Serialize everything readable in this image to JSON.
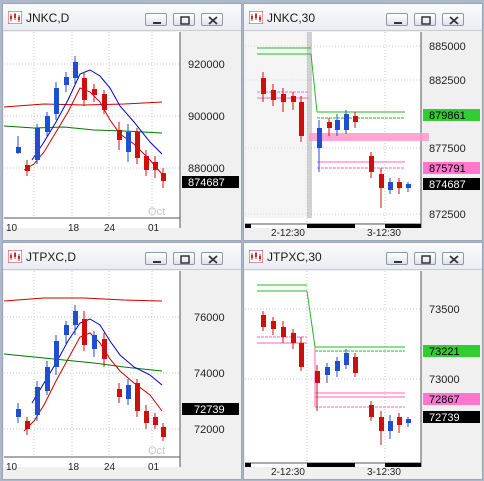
{
  "windows": [
    {
      "id": "w1",
      "title": "JNKC,D",
      "type": "candles",
      "x_labels": [
        "10",
        "18",
        "24",
        "01"
      ],
      "watermark": "Oct",
      "y_labels": [
        "920000",
        "900000",
        "880000"
      ],
      "price_tag": "874687",
      "colors": {
        "up": "#1f4fd0",
        "down": "#cc1010",
        "ma_fast": "#0000cc",
        "ma_red": "#cc0000",
        "ma_slow": "#007700",
        "ma_long": "#cc1010"
      }
    },
    {
      "id": "w2",
      "title": "JNKC,30",
      "type": "intraday",
      "x_labels": [
        "2-12:30",
        "3-12:30"
      ],
      "y_labels": [
        "885000",
        "882500",
        "877500",
        "872500"
      ],
      "green_tag": "879861",
      "pink_tag": "875791",
      "price_tag": "874687"
    },
    {
      "id": "w3",
      "title": "JTPXC,D",
      "type": "candles",
      "x_labels": [
        "10",
        "18",
        "24",
        "01"
      ],
      "watermark": "Oct",
      "y_labels": [
        "76000",
        "74000",
        "72000"
      ],
      "price_tag": "72739"
    },
    {
      "id": "w4",
      "title": "JTPXC,30",
      "type": "intraday",
      "x_labels": [
        "2-12:30",
        "3-12:30"
      ],
      "y_labels": [
        "73500",
        "73000"
      ],
      "green_tag": "73221",
      "pink_tag": "72867",
      "price_tag": "72739"
    }
  ]
}
